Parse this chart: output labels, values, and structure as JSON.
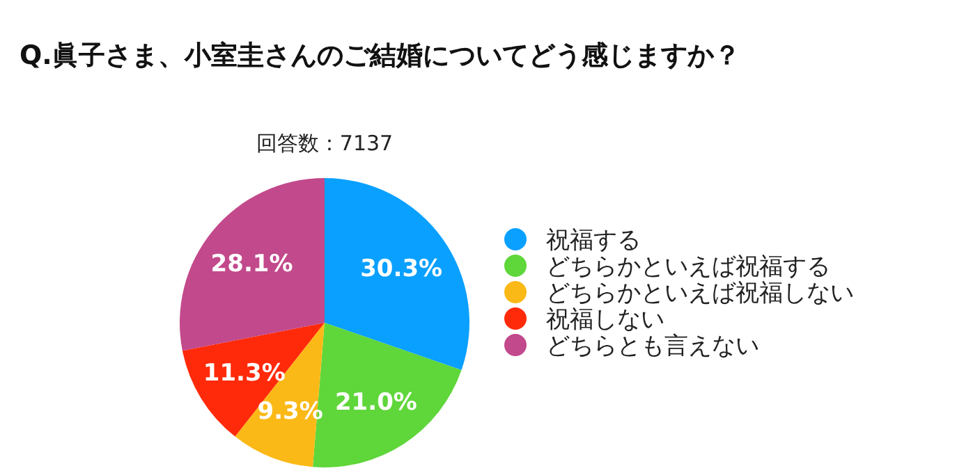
{
  "chart_data": {
    "type": "pie",
    "title": "Q.眞子さま、小室圭さんのご結婚についてどう感じますか？",
    "subtitle": "回答数：7137",
    "categories": [
      "祝福する",
      "どちらかといえば祝福する",
      "どちらかといえば祝福しない",
      "祝福しない",
      "どちらとも言えない"
    ],
    "values": [
      30.3,
      21.0,
      9.3,
      11.3,
      28.1
    ],
    "colors": [
      "#0aa0ff",
      "#5fd63a",
      "#fbb917",
      "#ff2a0a",
      "#c2498b"
    ],
    "value_labels": [
      "30.3%",
      "21.0%",
      "9.3%",
      "11.3%",
      "28.1%"
    ],
    "legend": "right"
  }
}
